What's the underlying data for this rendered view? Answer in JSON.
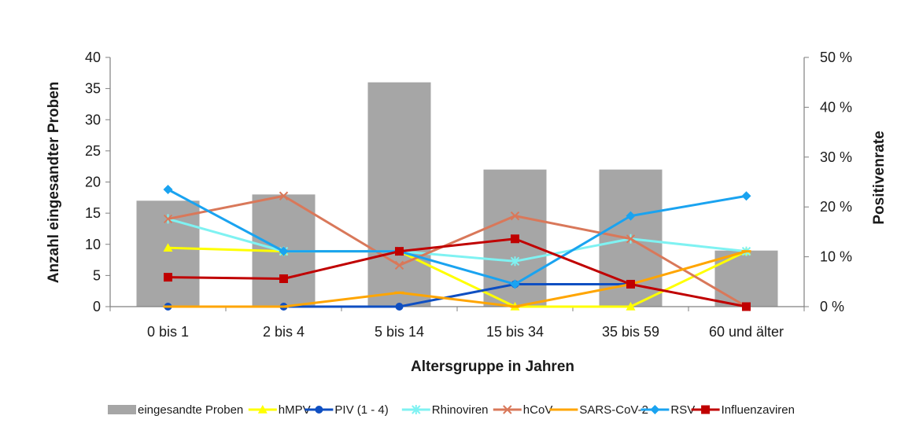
{
  "chart_data": {
    "type": "bar",
    "title": "",
    "xlabel": "Altersgruppe in Jahren",
    "ylabel": "Anzahl eingesandter Proben",
    "y2label": "Positivenrate",
    "categories": [
      "0 bis 1",
      "2 bis 4",
      "5 bis 14",
      "15 bis 34",
      "35 bis 59",
      "60 und älter"
    ],
    "ylim": [
      0,
      40
    ],
    "y_ticks": [
      0,
      5,
      10,
      15,
      20,
      25,
      30,
      35,
      40
    ],
    "y2lim": [
      0,
      50
    ],
    "y2_ticks": [
      0,
      10,
      20,
      30,
      40,
      50
    ],
    "y2_tick_labels": [
      "0 %",
      "10 %",
      "20 %",
      "30 %",
      "40 %",
      "50 %"
    ],
    "grid": false,
    "legend_position": "bottom",
    "bars": {
      "name": "eingesandte Proben",
      "axis": "left",
      "color": "#a6a6a6",
      "values": [
        17,
        18,
        36,
        22,
        22,
        9
      ]
    },
    "series": [
      {
        "name": "hMPV",
        "axis": "right",
        "unit": "%",
        "color": "#ffff00",
        "marker": "triangle",
        "values": [
          11.8,
          11.1,
          11.1,
          0,
          0,
          11.1
        ]
      },
      {
        "name": "PIV (1 - 4)",
        "axis": "right",
        "unit": "%",
        "color": "#0f4fc2",
        "marker": "circle",
        "values": [
          0,
          0,
          0,
          4.5,
          4.5,
          null
        ]
      },
      {
        "name": "Rhinoviren",
        "axis": "right",
        "unit": "%",
        "color": "#7ff2f2",
        "marker": "star",
        "values": [
          17.6,
          11.1,
          11.1,
          9.1,
          13.6,
          11.1
        ]
      },
      {
        "name": "hCoV",
        "axis": "right",
        "unit": "%",
        "color": "#d9785a",
        "marker": "x",
        "values": [
          17.6,
          22.2,
          8.3,
          18.2,
          13.6,
          0
        ]
      },
      {
        "name": "SARS-CoV-2",
        "axis": "right",
        "unit": "%",
        "color": "#ffa500",
        "marker": "dash",
        "values": [
          0,
          0,
          2.8,
          0,
          4.5,
          11.1
        ]
      },
      {
        "name": "RSV",
        "axis": "right",
        "unit": "%",
        "color": "#1aa3f0",
        "marker": "diamond",
        "values": [
          23.5,
          11.1,
          11.1,
          4.5,
          18.2,
          22.2
        ]
      },
      {
        "name": "Influenzaviren",
        "axis": "right",
        "unit": "%",
        "color": "#c00000",
        "marker": "square",
        "values": [
          5.9,
          5.6,
          11.1,
          13.6,
          4.5,
          0
        ]
      }
    ]
  }
}
